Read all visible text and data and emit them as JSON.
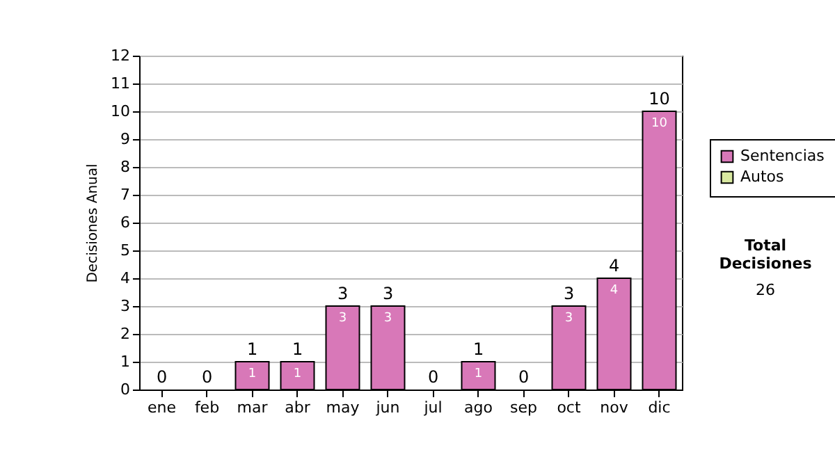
{
  "chart_data": {
    "type": "bar",
    "stacked": true,
    "ylabel": "Decisiones Anual",
    "categories": [
      "ene",
      "feb",
      "mar",
      "abr",
      "may",
      "jun",
      "jul",
      "ago",
      "sep",
      "oct",
      "nov",
      "dic"
    ],
    "series": [
      {
        "name": "Sentencias",
        "color": "#d878b8",
        "values": [
          0,
          0,
          1,
          1,
          3,
          3,
          0,
          1,
          0,
          3,
          4,
          10
        ],
        "value_labels": [
          null,
          null,
          "1",
          "1",
          "3",
          "3",
          null,
          "1",
          null,
          "3",
          "4",
          "10"
        ]
      },
      {
        "name": "Autos",
        "color": "#d8e8a0",
        "values": [
          0,
          0,
          0,
          0,
          0,
          0,
          0,
          0,
          0,
          0,
          0,
          0
        ]
      }
    ],
    "totals": [
      "0",
      "0",
      "1",
      "1",
      "3",
      "3",
      "0",
      "1",
      "0",
      "3",
      "4",
      "10"
    ],
    "ylim": [
      0,
      12
    ],
    "yticks": [
      0,
      1,
      2,
      3,
      4,
      5,
      6,
      7,
      8,
      9,
      10,
      11,
      12
    ],
    "grid": "y",
    "legend": "right",
    "annotations": [
      "Total Decisiones",
      "26"
    ]
  }
}
